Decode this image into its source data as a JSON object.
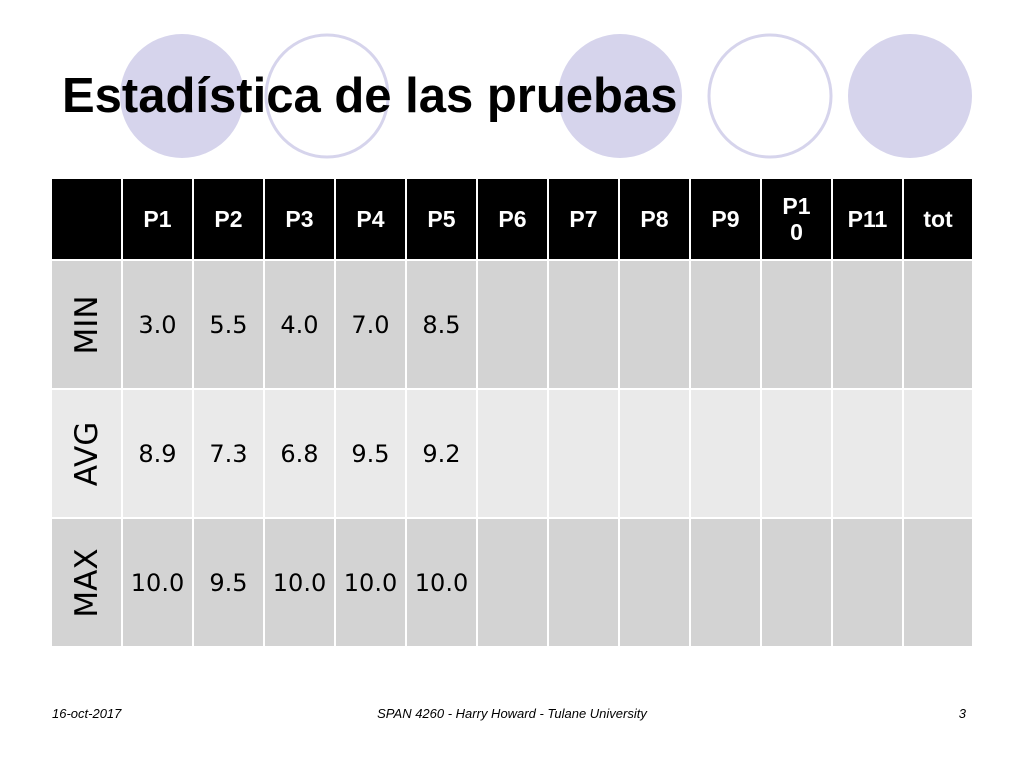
{
  "slide": {
    "title": "Estadística de las pruebas",
    "footer": {
      "date": "16-oct-2017",
      "course": "SPAN 4260 - Harry Howard - Tulane University",
      "page_number": "3"
    },
    "decoration_colors": {
      "filled_circle": "#d6d4ec",
      "ring_stroke": "#d6d4ec"
    }
  },
  "table": {
    "headers": [
      "",
      "P1",
      "P2",
      "P3",
      "P4",
      "P5",
      "P6",
      "P7",
      "P8",
      "P9",
      "P10",
      "P11",
      "tot"
    ],
    "rows": [
      {
        "label": "MIN",
        "values": [
          "3.0",
          "5.5",
          "4.0",
          "7.0",
          "8.5",
          "",
          "",
          "",
          "",
          "",
          "",
          ""
        ]
      },
      {
        "label": "AVG",
        "values": [
          "8.9",
          "7.3",
          "6.8",
          "9.5",
          "9.2",
          "",
          "",
          "",
          "",
          "",
          "",
          ""
        ]
      },
      {
        "label": "MAX",
        "values": [
          "10.0",
          "9.5",
          "10.0",
          "10.0",
          "10.0",
          "",
          "",
          "",
          "",
          "",
          "",
          ""
        ]
      }
    ],
    "colors": {
      "header_bg": "#000000",
      "header_text": "#ffffff",
      "row_dark": "#d3d3d3",
      "row_light": "#eaeaea"
    }
  }
}
